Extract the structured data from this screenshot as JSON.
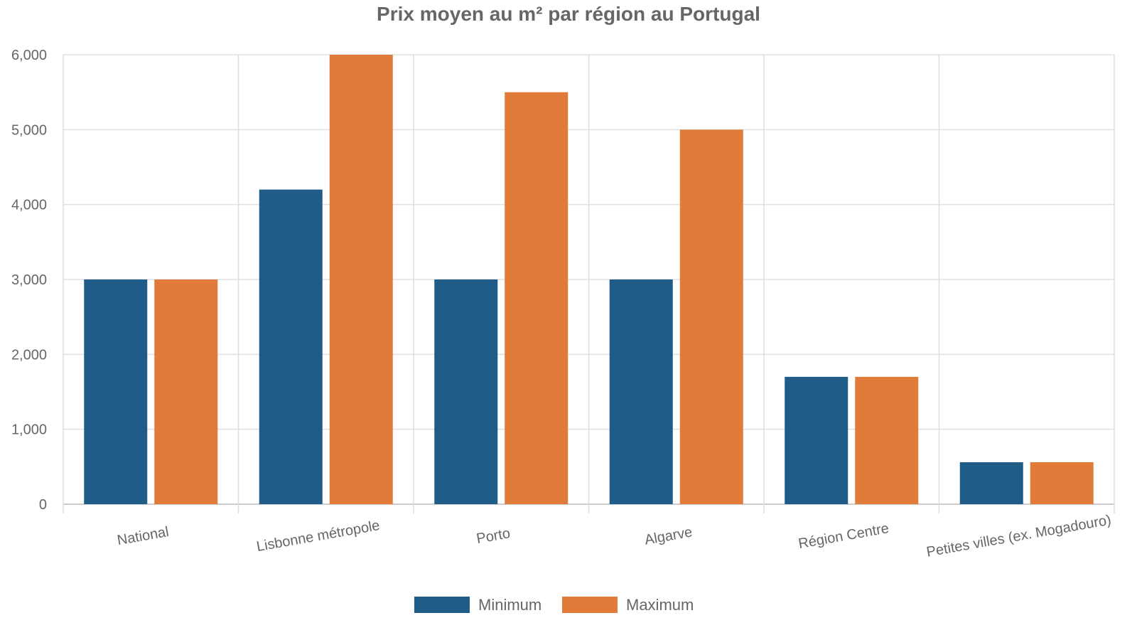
{
  "chart_data": {
    "type": "bar",
    "title": "Prix moyen au m² par région au Portugal",
    "categories": [
      "National",
      "Lisbonne métropole",
      "Porto",
      "Algarve",
      "Région Centre",
      "Petites villes (ex. Mogadouro)"
    ],
    "series": [
      {
        "name": "Minimum",
        "color": "#1f5c87",
        "values": [
          3000,
          4200,
          3000,
          3000,
          1700,
          560
        ]
      },
      {
        "name": "Maximum",
        "color": "#e07b39",
        "values": [
          3000,
          6000,
          5500,
          5000,
          1700,
          560
        ]
      }
    ],
    "ylim": [
      0,
      6000
    ],
    "yticks": [
      0,
      1000,
      2000,
      3000,
      4000,
      5000,
      6000
    ],
    "ytick_labels": [
      "0",
      "1,000",
      "2,000",
      "3,000",
      "4,000",
      "5,000",
      "6,000"
    ],
    "grid": true,
    "legend": "bottom"
  }
}
